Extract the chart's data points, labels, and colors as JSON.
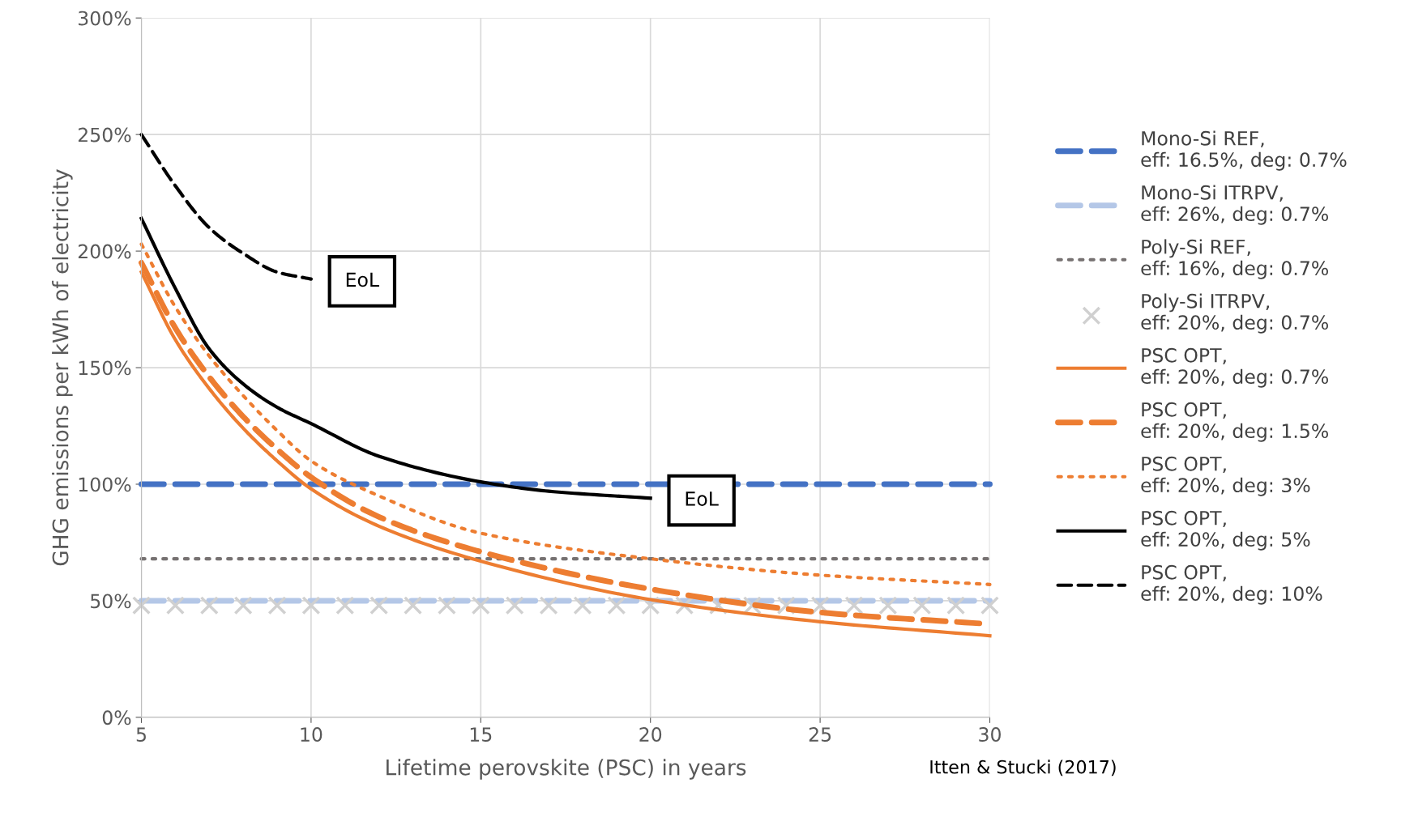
{
  "chart_data": {
    "type": "line",
    "xlabel": "Lifetime perovskite (PSC) in years",
    "ylabel": "GHG emissions per kWh of electricity",
    "xlim": [
      5,
      30
    ],
    "xticks": [
      5,
      10,
      15,
      20,
      25,
      30
    ],
    "ylim": [
      0,
      300
    ],
    "yticks": [
      {
        "value": 0,
        "label": "0%"
      },
      {
        "value": 50,
        "label": "50%"
      },
      {
        "value": 100,
        "label": "100%"
      },
      {
        "value": 150,
        "label": "150%"
      },
      {
        "value": 200,
        "label": "200%"
      },
      {
        "value": 250,
        "label": "250%"
      },
      {
        "value": 300,
        "label": "300%"
      }
    ],
    "grid": true,
    "legend": "right",
    "series": [
      {
        "name": "Mono-Si REF,\neff: 16.5%, deg: 0.7%",
        "color": "#4472c4",
        "line_style": "dashed",
        "marker": "none",
        "x": [
          5,
          30
        ],
        "values": [
          100,
          100
        ]
      },
      {
        "name": "Mono-Si ITRPV,\neff: 26%, deg: 0.7%",
        "color": "#b4c7e7",
        "line_style": "dashed",
        "marker": "none",
        "x": [
          5,
          30
        ],
        "values": [
          50,
          50
        ]
      },
      {
        "name": "Poly-Si REF,\neff: 16%, deg: 0.7%",
        "color": "#767171",
        "line_style": "dotted",
        "marker": "none",
        "x": [
          5,
          30
        ],
        "values": [
          68,
          68
        ]
      },
      {
        "name": "Poly-Si ITRPV,\neff: 20%, deg: 0.7%",
        "type": "scatter",
        "color": "#d0d0d0",
        "marker": "cross",
        "x": [
          5,
          6,
          7,
          8,
          9,
          10,
          11,
          12,
          13,
          14,
          15,
          16,
          17,
          18,
          19,
          20,
          21,
          22,
          23,
          24,
          25,
          26,
          27,
          28,
          29,
          30
        ],
        "values": [
          48,
          48,
          48,
          48,
          48,
          48,
          48,
          48,
          48,
          48,
          48,
          48,
          48,
          48,
          48,
          48,
          48,
          48,
          48,
          48,
          48,
          48,
          48,
          48,
          48,
          48
        ]
      },
      {
        "name": "PSC OPT,\neff: 20%, deg: 0.7%",
        "color": "#ed7d31",
        "line_style": "solid",
        "marker": "none",
        "x": [
          5,
          6,
          7,
          8,
          9,
          10,
          12,
          15,
          20,
          25,
          30
        ],
        "values": [
          191,
          162,
          141,
          124,
          110,
          98,
          82,
          67,
          50.5,
          41,
          35
        ]
      },
      {
        "name": "PSC OPT,\neff: 20%, deg: 1.5%",
        "color": "#ed7d31",
        "line_style": "dashed",
        "marker": "none",
        "x": [
          5,
          6,
          7,
          8,
          9,
          10,
          12,
          15,
          20,
          25,
          30
        ],
        "values": [
          195,
          167,
          146,
          129,
          115,
          103,
          86,
          71,
          55,
          45,
          40
        ]
      },
      {
        "name": "PSC OPT,\neff: 20%, deg: 3%",
        "color": "#ed7d31",
        "line_style": "dotted",
        "marker": "none",
        "x": [
          5,
          6,
          7,
          8,
          9,
          10,
          12,
          15,
          20,
          25,
          30
        ],
        "values": [
          203,
          176,
          155,
          138,
          123,
          110,
          95,
          79,
          68,
          61,
          57
        ]
      },
      {
        "name": "PSC OPT,\neff: 20%, deg: 5%",
        "color": "#000000",
        "line_style": "solid",
        "marker": "none",
        "x": [
          5,
          6,
          7,
          8,
          9,
          10,
          12,
          15,
          17,
          20
        ],
        "values": [
          214,
          184,
          158,
          143,
          133,
          126,
          112,
          101,
          97,
          94
        ]
      },
      {
        "name": "PSC OPT,\neff: 20%, deg: 10%",
        "color": "#000000",
        "line_style": "dashed",
        "marker": "none",
        "x": [
          5,
          6,
          7,
          8,
          9,
          10
        ],
        "values": [
          250,
          228,
          210,
          199,
          191,
          188
        ]
      }
    ],
    "annotations": [
      {
        "text": "EoL",
        "x": 10,
        "y": 188
      },
      {
        "text": "EoL",
        "x": 20,
        "y": 94
      },
      "Itten & Stucki (2017)"
    ]
  }
}
